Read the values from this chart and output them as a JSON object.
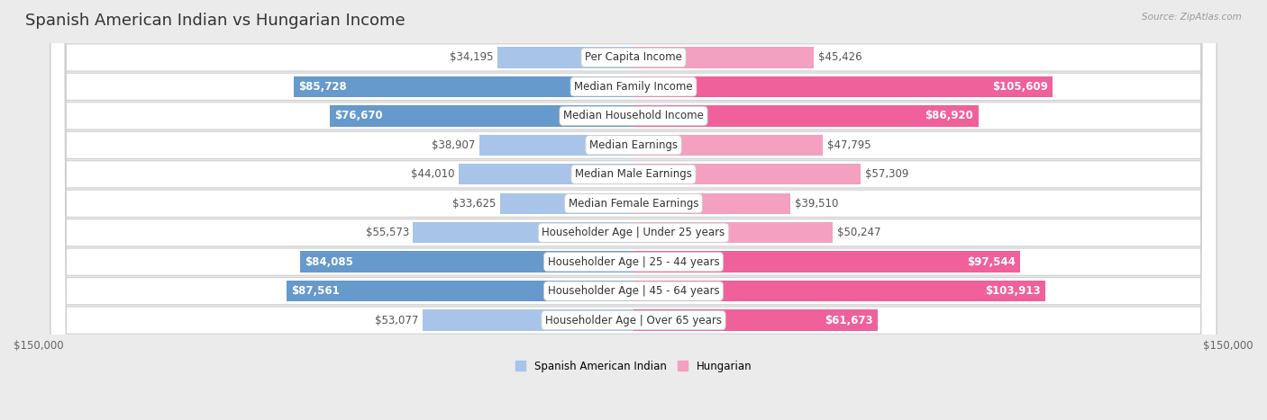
{
  "title": "Spanish American Indian vs Hungarian Income",
  "source": "Source: ZipAtlas.com",
  "categories": [
    "Per Capita Income",
    "Median Family Income",
    "Median Household Income",
    "Median Earnings",
    "Median Male Earnings",
    "Median Female Earnings",
    "Householder Age | Under 25 years",
    "Householder Age | 25 - 44 years",
    "Householder Age | 45 - 64 years",
    "Householder Age | Over 65 years"
  ],
  "left_values": [
    34195,
    85728,
    76670,
    38907,
    44010,
    33625,
    55573,
    84085,
    87561,
    53077
  ],
  "right_values": [
    45426,
    105609,
    86920,
    47795,
    57309,
    39510,
    50247,
    97544,
    103913,
    61673
  ],
  "left_labels": [
    "$34,195",
    "$85,728",
    "$76,670",
    "$38,907",
    "$44,010",
    "$33,625",
    "$55,573",
    "$84,085",
    "$87,561",
    "$53,077"
  ],
  "right_labels": [
    "$45,426",
    "$105,609",
    "$86,920",
    "$47,795",
    "$57,309",
    "$39,510",
    "$50,247",
    "$97,544",
    "$103,913",
    "$61,673"
  ],
  "left_color_light": "#a8c4e8",
  "left_color_dark": "#6699cc",
  "right_color_light": "#f4a0c0",
  "right_color_dark": "#f0609a",
  "max_value": 150000,
  "legend_left": "Spanish American Indian",
  "legend_right": "Hungarian",
  "bg_color": "#ebebeb",
  "row_bg": "#ffffff",
  "title_fontsize": 13,
  "label_fontsize": 8.5,
  "axis_label_fontsize": 8.5,
  "large_threshold": 60000
}
